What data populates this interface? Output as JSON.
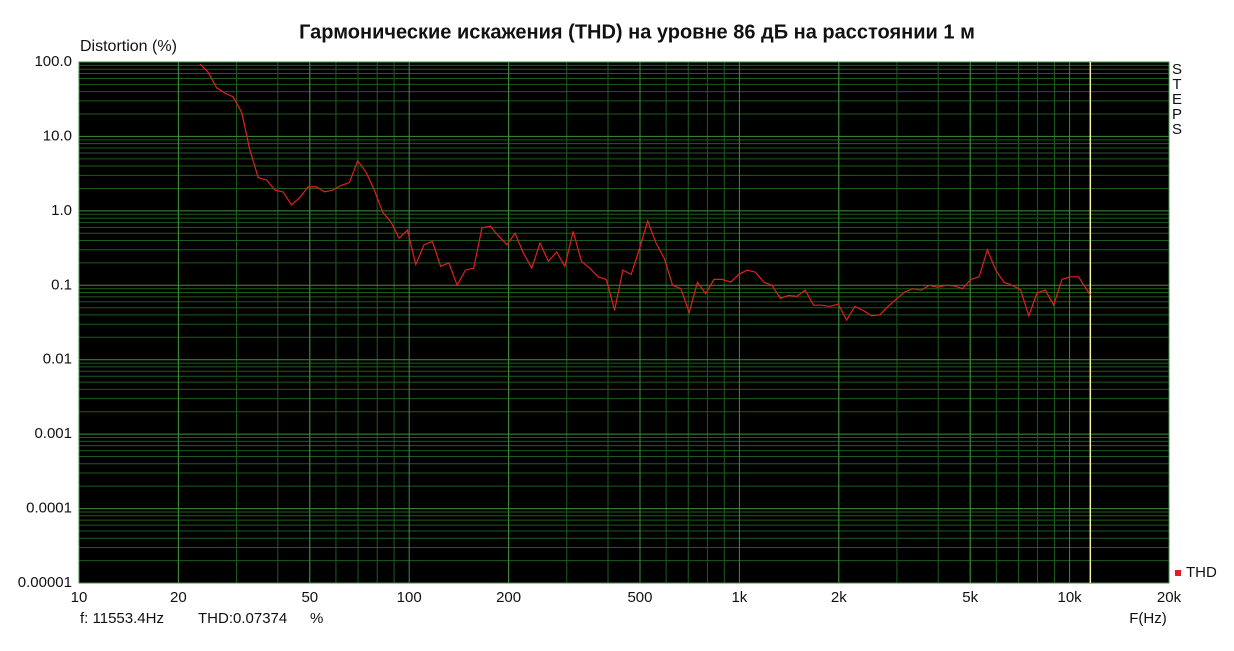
{
  "chart_data": {
    "type": "line",
    "title": "Гармонические искажения (THD) на уровне 86 дБ на расстоянии 1 м",
    "y_label": "Distortion (%)",
    "x_label": "F(Hz)",
    "side_label": "STEPS",
    "log_x": true,
    "log_y": true,
    "grid": true,
    "legend": "bottom-right",
    "xlim": [
      10,
      20000
    ],
    "ylim": [
      1e-05,
      100
    ],
    "xticks": [
      10,
      20,
      50,
      100,
      200,
      500,
      {
        "value": 1000,
        "label": "1k"
      },
      {
        "value": 2000,
        "label": "2k"
      },
      {
        "value": 5000,
        "label": "5k"
      },
      {
        "value": 10000,
        "label": "10k"
      },
      {
        "value": 20000,
        "label": "20k"
      }
    ],
    "yticks": [
      {
        "value": 100,
        "label": "100.0"
      },
      {
        "value": 10,
        "label": "10.0"
      },
      {
        "value": 1,
        "label": "1.0"
      },
      0.1,
      0.01,
      0.001,
      0.0001,
      1e-05
    ],
    "cursor": {
      "x": 11553.4,
      "color": "#f4f0a0",
      "label_f": "f: 11553.4Hz",
      "label_value": "THD:0.07374",
      "unit": "%"
    },
    "x": [
      23.25,
      24.6,
      26.1,
      27.7,
      29.3,
      31.1,
      32.9,
      34.9,
      37.0,
      39.2,
      41.5,
      44.0,
      46.6,
      49.4,
      52.3,
      55.4,
      58.7,
      62.2,
      65.9,
      69.8,
      74.0,
      78.4,
      83.1,
      88.0,
      93.2,
      98.8,
      104.7,
      110.9,
      117.5,
      124.5,
      131.9,
      139.7,
      148.0,
      156.8,
      166.1,
      176.0,
      186.5,
      197.6,
      209.3,
      221.8,
      235.0,
      249.0,
      263.8,
      279.5,
      296.1,
      313.7,
      332.4,
      352.2,
      373.1,
      395.3,
      418.8,
      443.7,
      470.1,
      498.1,
      527.7,
      559.1,
      592.3,
      627.6,
      664.9,
      704.4,
      746.3,
      790.7,
      837.7,
      887.5,
      940.3,
      996.2,
      1055,
      1118,
      1185,
      1255,
      1330,
      1409,
      1493,
      1582,
      1676,
      1775,
      1881,
      1993,
      2111,
      2237,
      2370,
      2511,
      2660,
      2818,
      2986,
      3163,
      3351,
      3551,
      3762,
      3986,
      4223,
      4474,
      4740,
      5022,
      5321,
      5637,
      5972,
      6327,
      6703,
      7102,
      7524,
      7972,
      8446,
      8948,
      9480,
      10044,
      10641,
      11553.4
    ],
    "series": [
      {
        "name": "THD",
        "color": "#e02020",
        "values": [
          94,
          73,
          45,
          38,
          34,
          21,
          6.6,
          2.8,
          2.6,
          1.9,
          1.8,
          1.2,
          1.5,
          2.1,
          2.1,
          1.8,
          1.9,
          2.2,
          2.4,
          4.7,
          3.3,
          1.9,
          0.96,
          0.71,
          0.43,
          0.55,
          0.19,
          0.35,
          0.39,
          0.18,
          0.2,
          0.1,
          0.16,
          0.17,
          0.59,
          0.62,
          0.46,
          0.35,
          0.5,
          0.27,
          0.17,
          0.37,
          0.21,
          0.28,
          0.18,
          0.53,
          0.21,
          0.17,
          0.13,
          0.12,
          0.046,
          0.16,
          0.14,
          0.31,
          0.73,
          0.37,
          0.23,
          0.1,
          0.09,
          0.043,
          0.11,
          0.077,
          0.12,
          0.12,
          0.11,
          0.14,
          0.16,
          0.15,
          0.11,
          0.1,
          0.067,
          0.073,
          0.071,
          0.086,
          0.054,
          0.054,
          0.052,
          0.056,
          0.034,
          0.052,
          0.046,
          0.039,
          0.04,
          0.052,
          0.065,
          0.081,
          0.09,
          0.086,
          0.1,
          0.094,
          0.1,
          0.098,
          0.09,
          0.12,
          0.13,
          0.3,
          0.16,
          0.11,
          0.1,
          0.087,
          0.039,
          0.079,
          0.086,
          0.054,
          0.12,
          0.13,
          0.13,
          0.07374
        ]
      }
    ]
  }
}
